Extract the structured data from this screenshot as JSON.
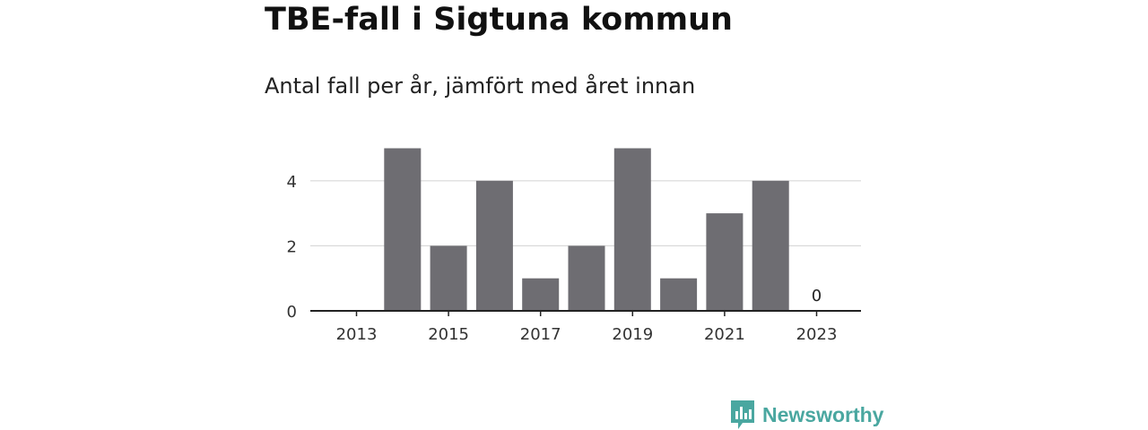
{
  "title": "TBE-fall i Sigtuna kommun",
  "subtitle": "Antal fall per år, jämfört med året innan",
  "brand": {
    "name": "Newsworthy",
    "color": "#4aa7a0",
    "icon": "newsworthy-logo-icon"
  },
  "colors": {
    "bar": "#6e6d72",
    "grid": "#d9d9d9",
    "axis": "#222222"
  },
  "chart_data": {
    "type": "bar",
    "categories": [
      "2013",
      "2014",
      "2015",
      "2016",
      "2017",
      "2018",
      "2019",
      "2020",
      "2021",
      "2022",
      "2023"
    ],
    "values": [
      0,
      5,
      2,
      4,
      1,
      2,
      5,
      1,
      3,
      4,
      0
    ],
    "x_tick_labels": [
      "2013",
      "2015",
      "2017",
      "2019",
      "2021",
      "2023"
    ],
    "y_ticks": [
      0,
      2,
      4
    ],
    "ylim": [
      0,
      5
    ],
    "grid": true,
    "data_labels": [
      {
        "category": "2023",
        "text": "0"
      }
    ],
    "title": "TBE-fall i Sigtuna kommun",
    "subtitle": "Antal fall per år, jämfört med året innan",
    "xlabel": "",
    "ylabel": ""
  }
}
